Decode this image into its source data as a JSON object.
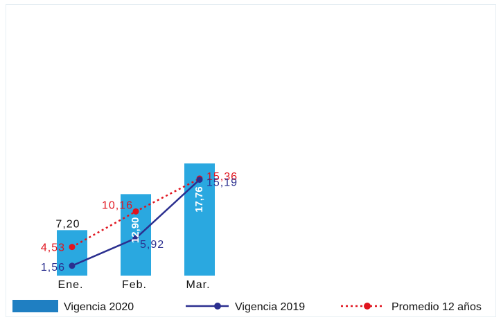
{
  "chart_data": {
    "type": "bar",
    "categories": [
      "Ene.",
      "Feb.",
      "Mar."
    ],
    "series": [
      {
        "name": "Vigencia 2020",
        "kind": "bar",
        "values": [
          7.2,
          12.9,
          17.76
        ],
        "labels": [
          "7,20",
          "12,90",
          "17,76"
        ],
        "color": "#2aa8e0"
      },
      {
        "name": "Vigencia 2019",
        "kind": "line",
        "values": [
          1.56,
          5.92,
          15.19
        ],
        "labels": [
          "1,56",
          "5,92",
          "15,19"
        ],
        "color": "#2b2f8f"
      },
      {
        "name": "Promedio 12 años",
        "kind": "dotted-line",
        "values": [
          4.53,
          10.16,
          15.36
        ],
        "labels": [
          "4,53",
          "10,16",
          "15,36"
        ],
        "color": "#e0141e"
      }
    ],
    "ylim": [
      0,
      40
    ],
    "grid": false,
    "legend_position": "bottom"
  }
}
